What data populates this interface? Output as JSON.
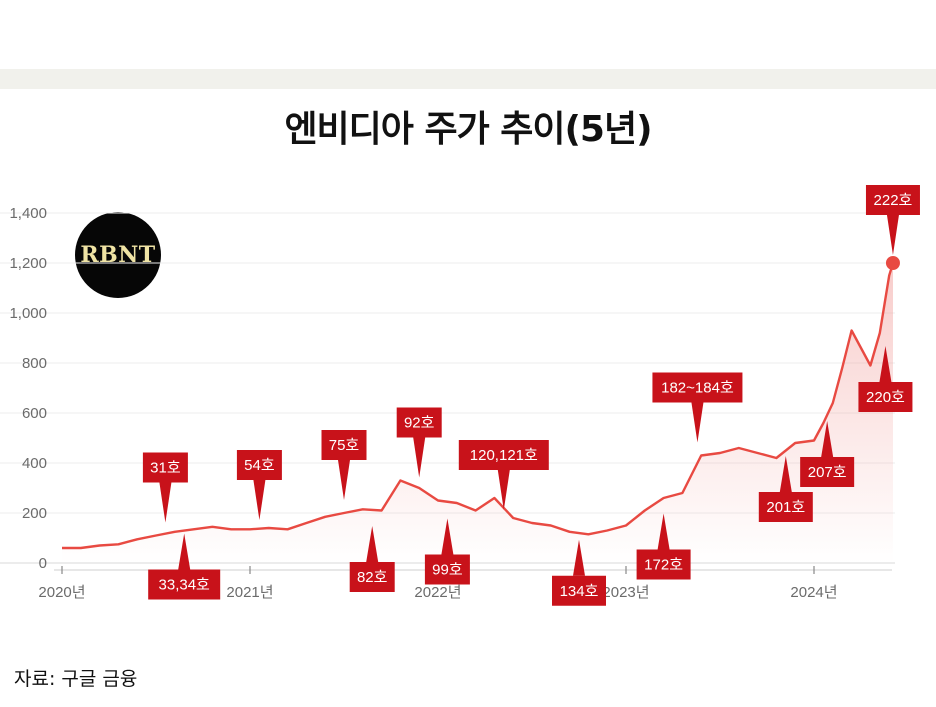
{
  "header": {
    "title": "엔비디아 주가 추이(5년)"
  },
  "logo": {
    "text": "RBNT"
  },
  "footer": {
    "source": "자료: 구글 금융"
  },
  "colors": {
    "line": "#e84a42",
    "annotation": "#c8121a",
    "band": "#f1f1ec"
  },
  "chart_data": {
    "type": "line",
    "title": "엔비디아 주가 추이(5년)",
    "xlabel": "",
    "ylabel": "",
    "x_ticks": [
      "2020년",
      "2021년",
      "2022년",
      "2023년",
      "2024년"
    ],
    "y_ticks": [
      "0",
      "200",
      "400",
      "600",
      "800",
      "1,000",
      "1,200",
      "1,400"
    ],
    "ylim": [
      0,
      1400
    ],
    "grid": true,
    "legend": "none",
    "series": [
      {
        "x": [
          2020.0,
          2020.1,
          2020.2,
          2020.3,
          2020.4,
          2020.5,
          2020.6,
          2020.7,
          2020.8,
          2020.9,
          2021.0,
          2021.1,
          2021.2,
          2021.3,
          2021.4,
          2021.5,
          2021.6,
          2021.7,
          2021.8,
          2021.9,
          2022.0,
          2022.1,
          2022.2,
          2022.3,
          2022.4,
          2022.5,
          2022.6,
          2022.7,
          2022.8,
          2022.9,
          2023.0,
          2023.1,
          2023.2,
          2023.3,
          2023.4,
          2023.5,
          2023.6,
          2023.7,
          2023.8,
          2023.9,
          2024.0,
          2024.05,
          2024.1,
          2024.15,
          2024.2,
          2024.25,
          2024.3,
          2024.35,
          2024.4,
          2024.42
        ],
        "values": [
          60,
          60,
          70,
          75,
          95,
          110,
          125,
          135,
          145,
          135,
          135,
          140,
          135,
          160,
          185,
          200,
          215,
          210,
          330,
          300,
          250,
          240,
          210,
          260,
          180,
          160,
          150,
          125,
          115,
          130,
          150,
          210,
          260,
          280,
          430,
          440,
          460,
          440,
          420,
          480,
          490,
          560,
          640,
          780,
          930,
          860,
          790,
          920,
          1150,
          1200
        ]
      }
    ],
    "annotations": [
      {
        "label": "31호",
        "x": 2020.55,
        "y": 130,
        "place": "above"
      },
      {
        "label": "33,34호",
        "x": 2020.65,
        "y": 150,
        "place": "below"
      },
      {
        "label": "54호",
        "x": 2021.05,
        "y": 140,
        "place": "above"
      },
      {
        "label": "75호",
        "x": 2021.5,
        "y": 220,
        "place": "above"
      },
      {
        "label": "82호",
        "x": 2021.65,
        "y": 180,
        "place": "below"
      },
      {
        "label": "92호",
        "x": 2021.9,
        "y": 310,
        "place": "above"
      },
      {
        "label": "99호",
        "x": 2022.05,
        "y": 210,
        "place": "below"
      },
      {
        "label": "120,121호",
        "x": 2022.35,
        "y": 180,
        "place": "above"
      },
      {
        "label": "134호",
        "x": 2022.75,
        "y": 125,
        "place": "below"
      },
      {
        "label": "172호",
        "x": 2023.2,
        "y": 230,
        "place": "below"
      },
      {
        "label": "182~184호",
        "x": 2023.38,
        "y": 450,
        "place": "above"
      },
      {
        "label": "201호",
        "x": 2023.85,
        "y": 460,
        "place": "below"
      },
      {
        "label": "207호",
        "x": 2024.07,
        "y": 600,
        "place": "below"
      },
      {
        "label": "220호",
        "x": 2024.38,
        "y": 900,
        "place": "below"
      },
      {
        "label": "222호",
        "x": 2024.42,
        "y": 1200,
        "place": "above",
        "marker": true
      }
    ]
  }
}
